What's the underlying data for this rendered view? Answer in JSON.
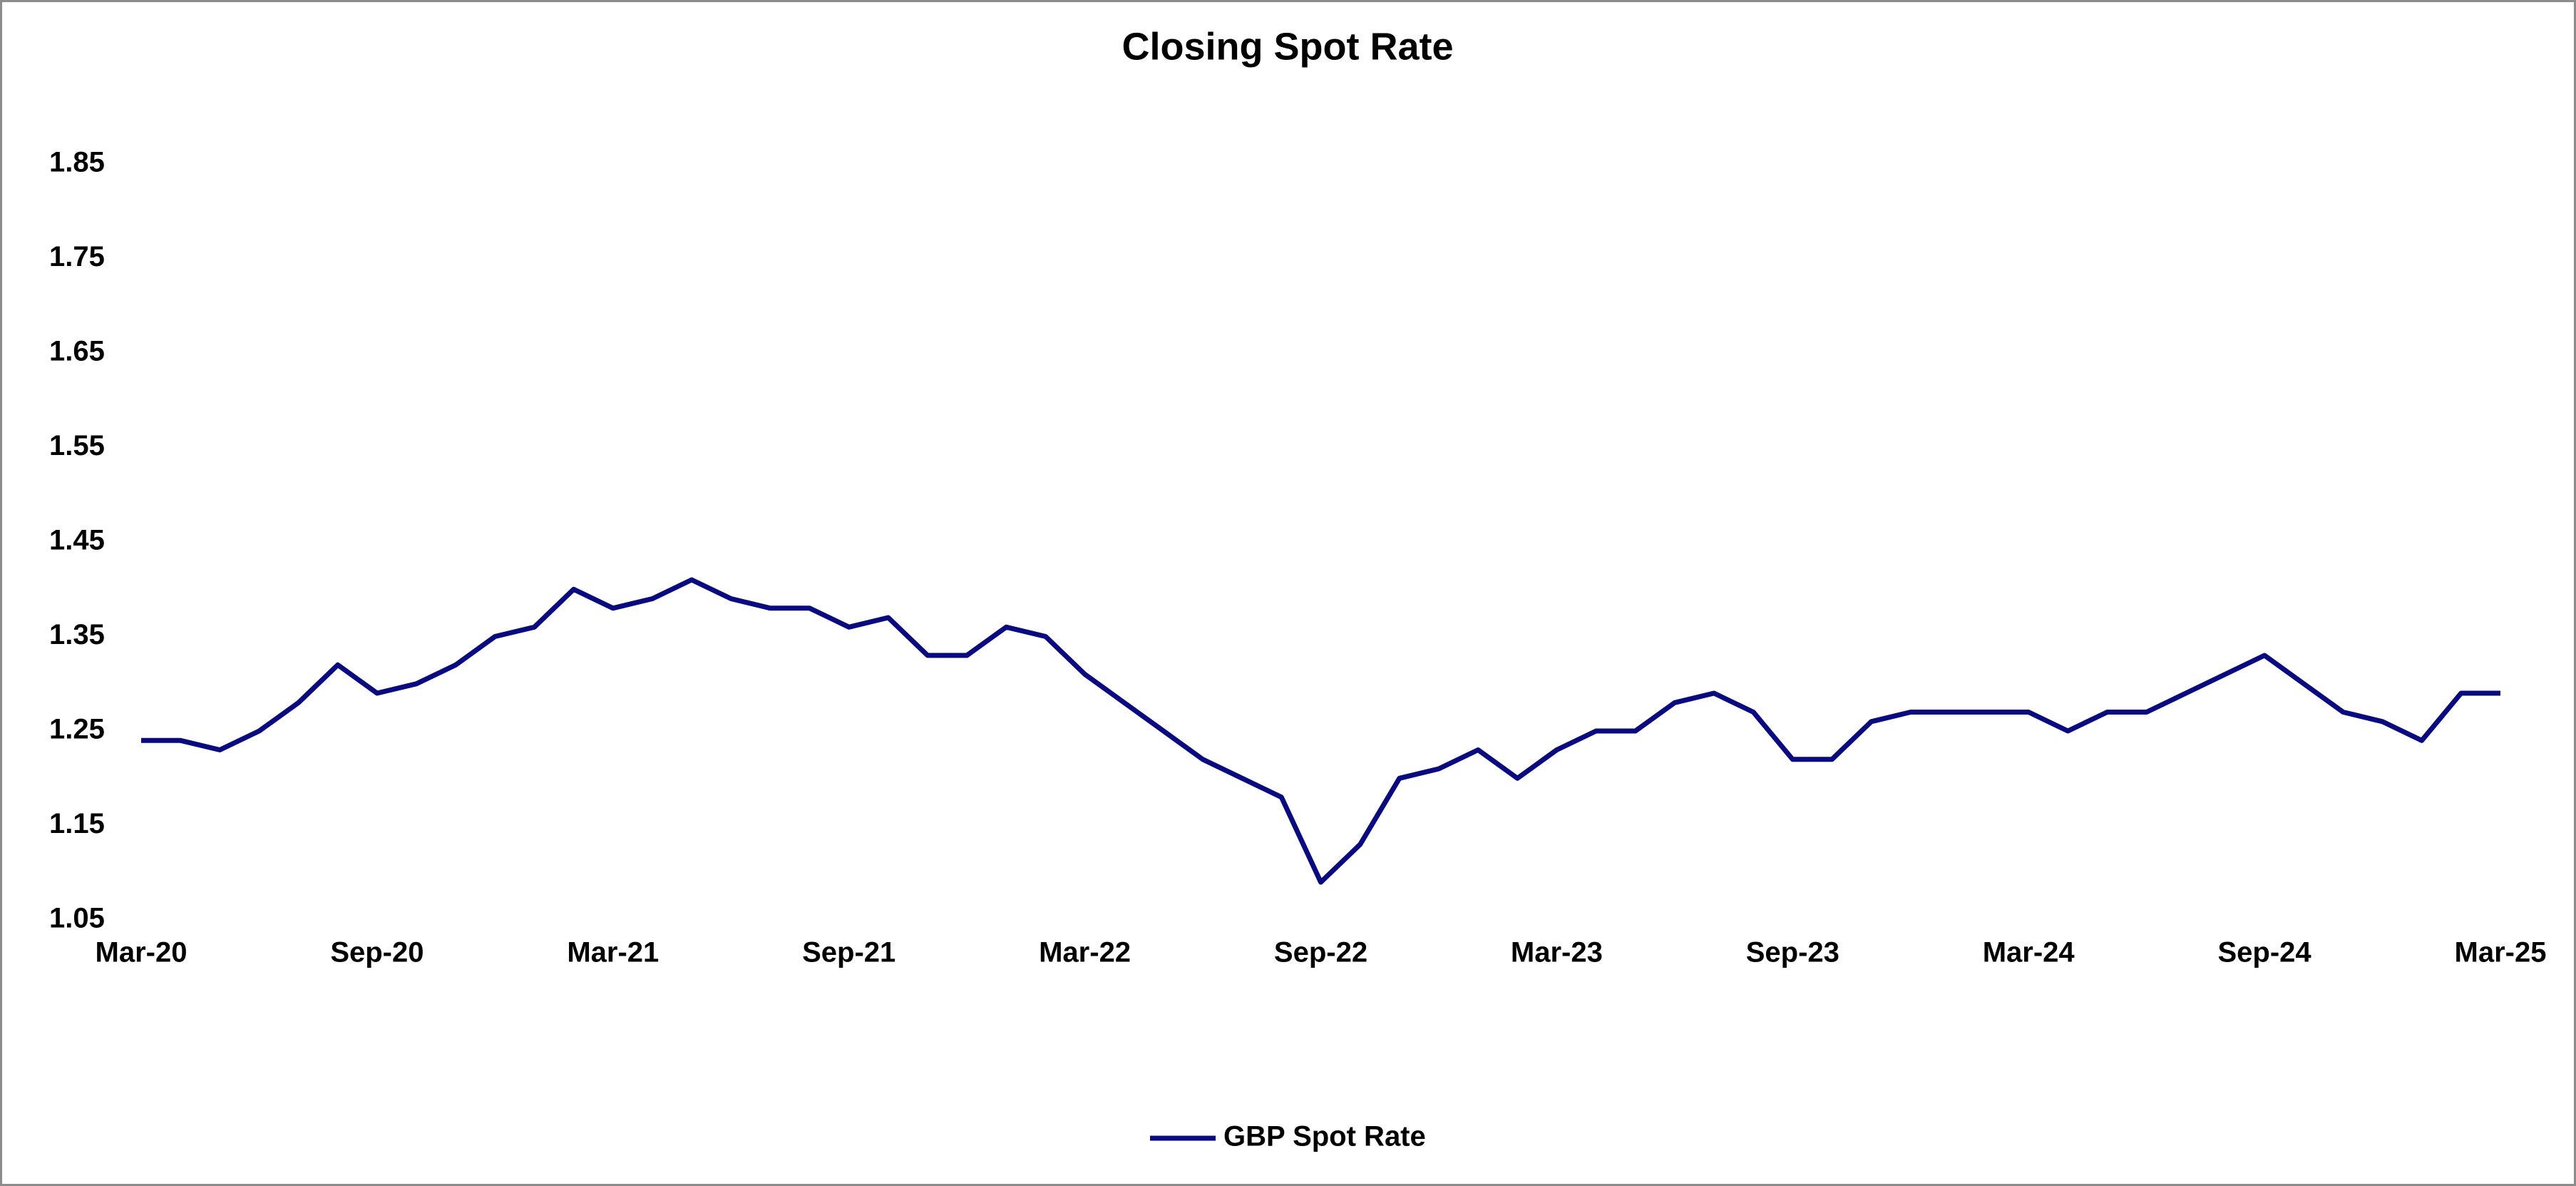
{
  "chart_data": {
    "type": "line",
    "title": "Closing Spot Rate",
    "x": [
      "2020-03",
      "2020-04",
      "2020-05",
      "2020-06",
      "2020-07",
      "2020-08",
      "2020-09",
      "2020-10",
      "2020-11",
      "2020-12",
      "2021-01",
      "2021-02",
      "2021-03",
      "2021-04",
      "2021-05",
      "2021-06",
      "2021-07",
      "2021-08",
      "2021-09",
      "2021-10",
      "2021-11",
      "2021-12",
      "2022-01",
      "2022-02",
      "2022-03",
      "2022-04",
      "2022-05",
      "2022-06",
      "2022-07",
      "2022-08",
      "2022-09",
      "2022-10",
      "2022-11",
      "2022-12",
      "2023-01",
      "2023-02",
      "2023-03",
      "2023-04",
      "2023-05",
      "2023-06",
      "2023-07",
      "2023-08",
      "2023-09",
      "2023-10",
      "2023-11",
      "2023-12",
      "2024-01",
      "2024-02",
      "2024-03",
      "2024-04",
      "2024-05",
      "2024-06",
      "2024-07",
      "2024-08",
      "2024-09",
      "2024-10",
      "2024-11",
      "2024-12",
      "2025-01",
      "2025-02",
      "2025-03"
    ],
    "series": [
      {
        "name": "GBP Spot Rate",
        "color": "#0a0a80",
        "values": [
          1.24,
          1.24,
          1.23,
          1.25,
          1.28,
          1.32,
          1.29,
          1.3,
          1.32,
          1.35,
          1.36,
          1.4,
          1.38,
          1.39,
          1.41,
          1.39,
          1.38,
          1.38,
          1.36,
          1.37,
          1.33,
          1.33,
          1.36,
          1.35,
          1.31,
          1.28,
          1.25,
          1.22,
          1.2,
          1.18,
          1.09,
          1.13,
          1.2,
          1.21,
          1.23,
          1.2,
          1.23,
          1.25,
          1.25,
          1.28,
          1.29,
          1.27,
          1.22,
          1.22,
          1.26,
          1.27,
          1.27,
          1.27,
          1.27,
          1.25,
          1.27,
          1.27,
          1.29,
          1.31,
          1.33,
          1.3,
          1.27,
          1.26,
          1.24,
          1.29,
          1.29
        ]
      }
    ],
    "xlim": [
      "2020-03",
      "2025-03"
    ],
    "xticks": [
      {
        "value": "2020-03",
        "label": "Mar-20"
      },
      {
        "value": "2020-09",
        "label": "Sep-20"
      },
      {
        "value": "2021-03",
        "label": "Mar-21"
      },
      {
        "value": "2021-09",
        "label": "Sep-21"
      },
      {
        "value": "2022-03",
        "label": "Mar-22"
      },
      {
        "value": "2022-09",
        "label": "Sep-22"
      },
      {
        "value": "2023-03",
        "label": "Mar-23"
      },
      {
        "value": "2023-09",
        "label": "Sep-23"
      },
      {
        "value": "2024-03",
        "label": "Mar-24"
      },
      {
        "value": "2024-09",
        "label": "Sep-24"
      },
      {
        "value": "2025-03",
        "label": "Mar-25"
      }
    ],
    "ylim": [
      1.05,
      1.85
    ],
    "yticks": [
      1.05,
      1.15,
      1.25,
      1.35,
      1.45,
      1.55,
      1.65,
      1.75,
      1.85
    ],
    "grid": false,
    "legend": "bottom"
  }
}
